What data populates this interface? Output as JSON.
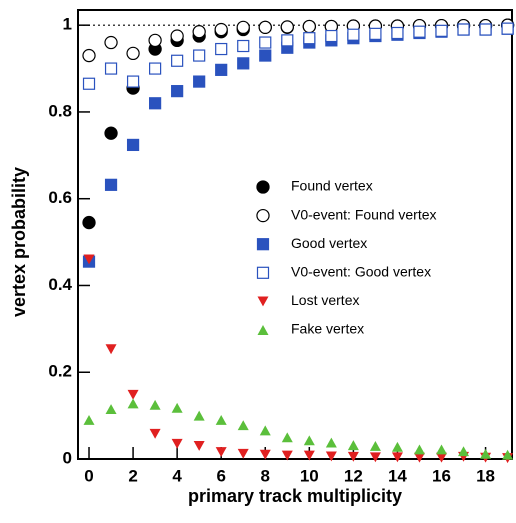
{
  "chart_data": {
    "type": "scatter",
    "x_label": "primary track multiplicity",
    "y_label": "vertex probability",
    "x": [
      0,
      1,
      2,
      3,
      4,
      5,
      6,
      7,
      8,
      9,
      10,
      11,
      12,
      13,
      14,
      15,
      16,
      17,
      18,
      19
    ],
    "xlim": [
      -0.5,
      19.2
    ],
    "xticks": [
      0,
      2,
      4,
      6,
      8,
      10,
      12,
      14,
      16,
      18
    ],
    "ylim": [
      0,
      1.035
    ],
    "yticks": [
      0,
      0.2,
      0.4,
      0.6,
      0.8,
      1
    ],
    "reference_line": 1,
    "legend": "center",
    "series": [
      {
        "name": "Found vertex",
        "color": "#000000",
        "marker": "circle",
        "values": [
          0.545,
          0.751,
          0.855,
          0.945,
          0.965,
          0.975,
          0.985,
          0.99,
          0.995,
          0.995,
          0.997,
          0.997,
          0.998,
          0.998,
          0.998,
          0.999,
          0.999,
          0.999,
          0.999,
          1.0
        ]
      },
      {
        "name": "V0-event: Found vertex",
        "color": "#000000",
        "marker": "circle-open",
        "values": [
          0.93,
          0.96,
          0.935,
          0.965,
          0.975,
          0.985,
          0.99,
          0.995,
          0.995,
          0.996,
          0.997,
          0.997,
          0.998,
          0.998,
          0.998,
          0.999,
          0.999,
          0.999,
          0.999,
          1.0
        ]
      },
      {
        "name": "Good vertex",
        "color": "#2a52be",
        "marker": "square",
        "values": [
          0.455,
          0.632,
          0.724,
          0.82,
          0.848,
          0.87,
          0.897,
          0.912,
          0.93,
          0.948,
          0.96,
          0.965,
          0.97,
          0.975,
          0.978,
          0.982,
          0.985,
          0.99,
          0.99,
          0.992
        ]
      },
      {
        "name": "V0-event: Good vertex",
        "color": "#2a52be",
        "marker": "square-open",
        "values": [
          0.865,
          0.9,
          0.87,
          0.9,
          0.918,
          0.93,
          0.945,
          0.952,
          0.96,
          0.965,
          0.97,
          0.975,
          0.978,
          0.98,
          0.982,
          0.985,
          0.987,
          0.99,
          0.99,
          0.992
        ]
      },
      {
        "name": "Lost vertex",
        "color": "#e02020",
        "marker": "triangle-down",
        "values": [
          0.46,
          0.253,
          0.148,
          0.058,
          0.035,
          0.03,
          0.016,
          0.012,
          0.01,
          0.008,
          0.008,
          0.006,
          0.005,
          0.004,
          0.004,
          0.003,
          0.003,
          0.005,
          0.003,
          0.002
        ]
      },
      {
        "name": "Fake vertex",
        "color": "#5bbf3b",
        "marker": "triangle-up",
        "values": [
          0.09,
          0.115,
          0.128,
          0.125,
          0.118,
          0.1,
          0.09,
          0.078,
          0.066,
          0.05,
          0.043,
          0.038,
          0.032,
          0.03,
          0.028,
          0.022,
          0.022,
          0.018,
          0.012,
          0.01
        ]
      }
    ]
  }
}
